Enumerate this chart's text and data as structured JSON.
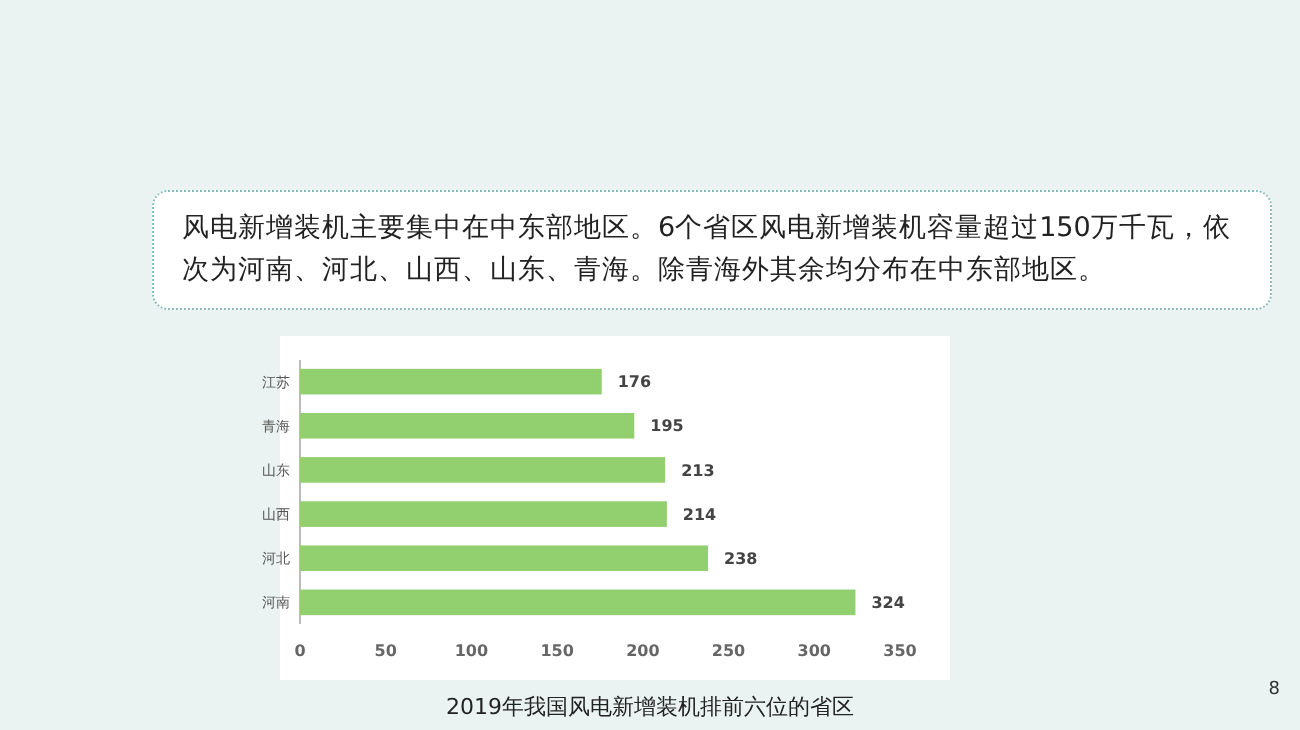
{
  "chart_data": {
    "type": "bar",
    "orientation": "horizontal",
    "title": "2019年我国风电新增装机排前六位的省区",
    "subtitle": "风电新增装机主要集中在中东部地区。6个省区风电新增装机容量超过150万千瓦，依次为河南、河北、山西、山东、青海。除青海外其余均分布在中东部地区。",
    "annotations": [
      "8"
    ],
    "categories": [
      "江苏",
      "青海",
      "山东",
      "山西",
      "河北",
      "河南"
    ],
    "values": [
      176,
      195,
      213,
      214,
      238,
      324
    ],
    "color": "#92cf6e",
    "xlim": [
      0,
      350
    ],
    "xticks": [
      0,
      50,
      100,
      150,
      200,
      250,
      300,
      350
    ],
    "data_labels": true,
    "grid": false
  }
}
